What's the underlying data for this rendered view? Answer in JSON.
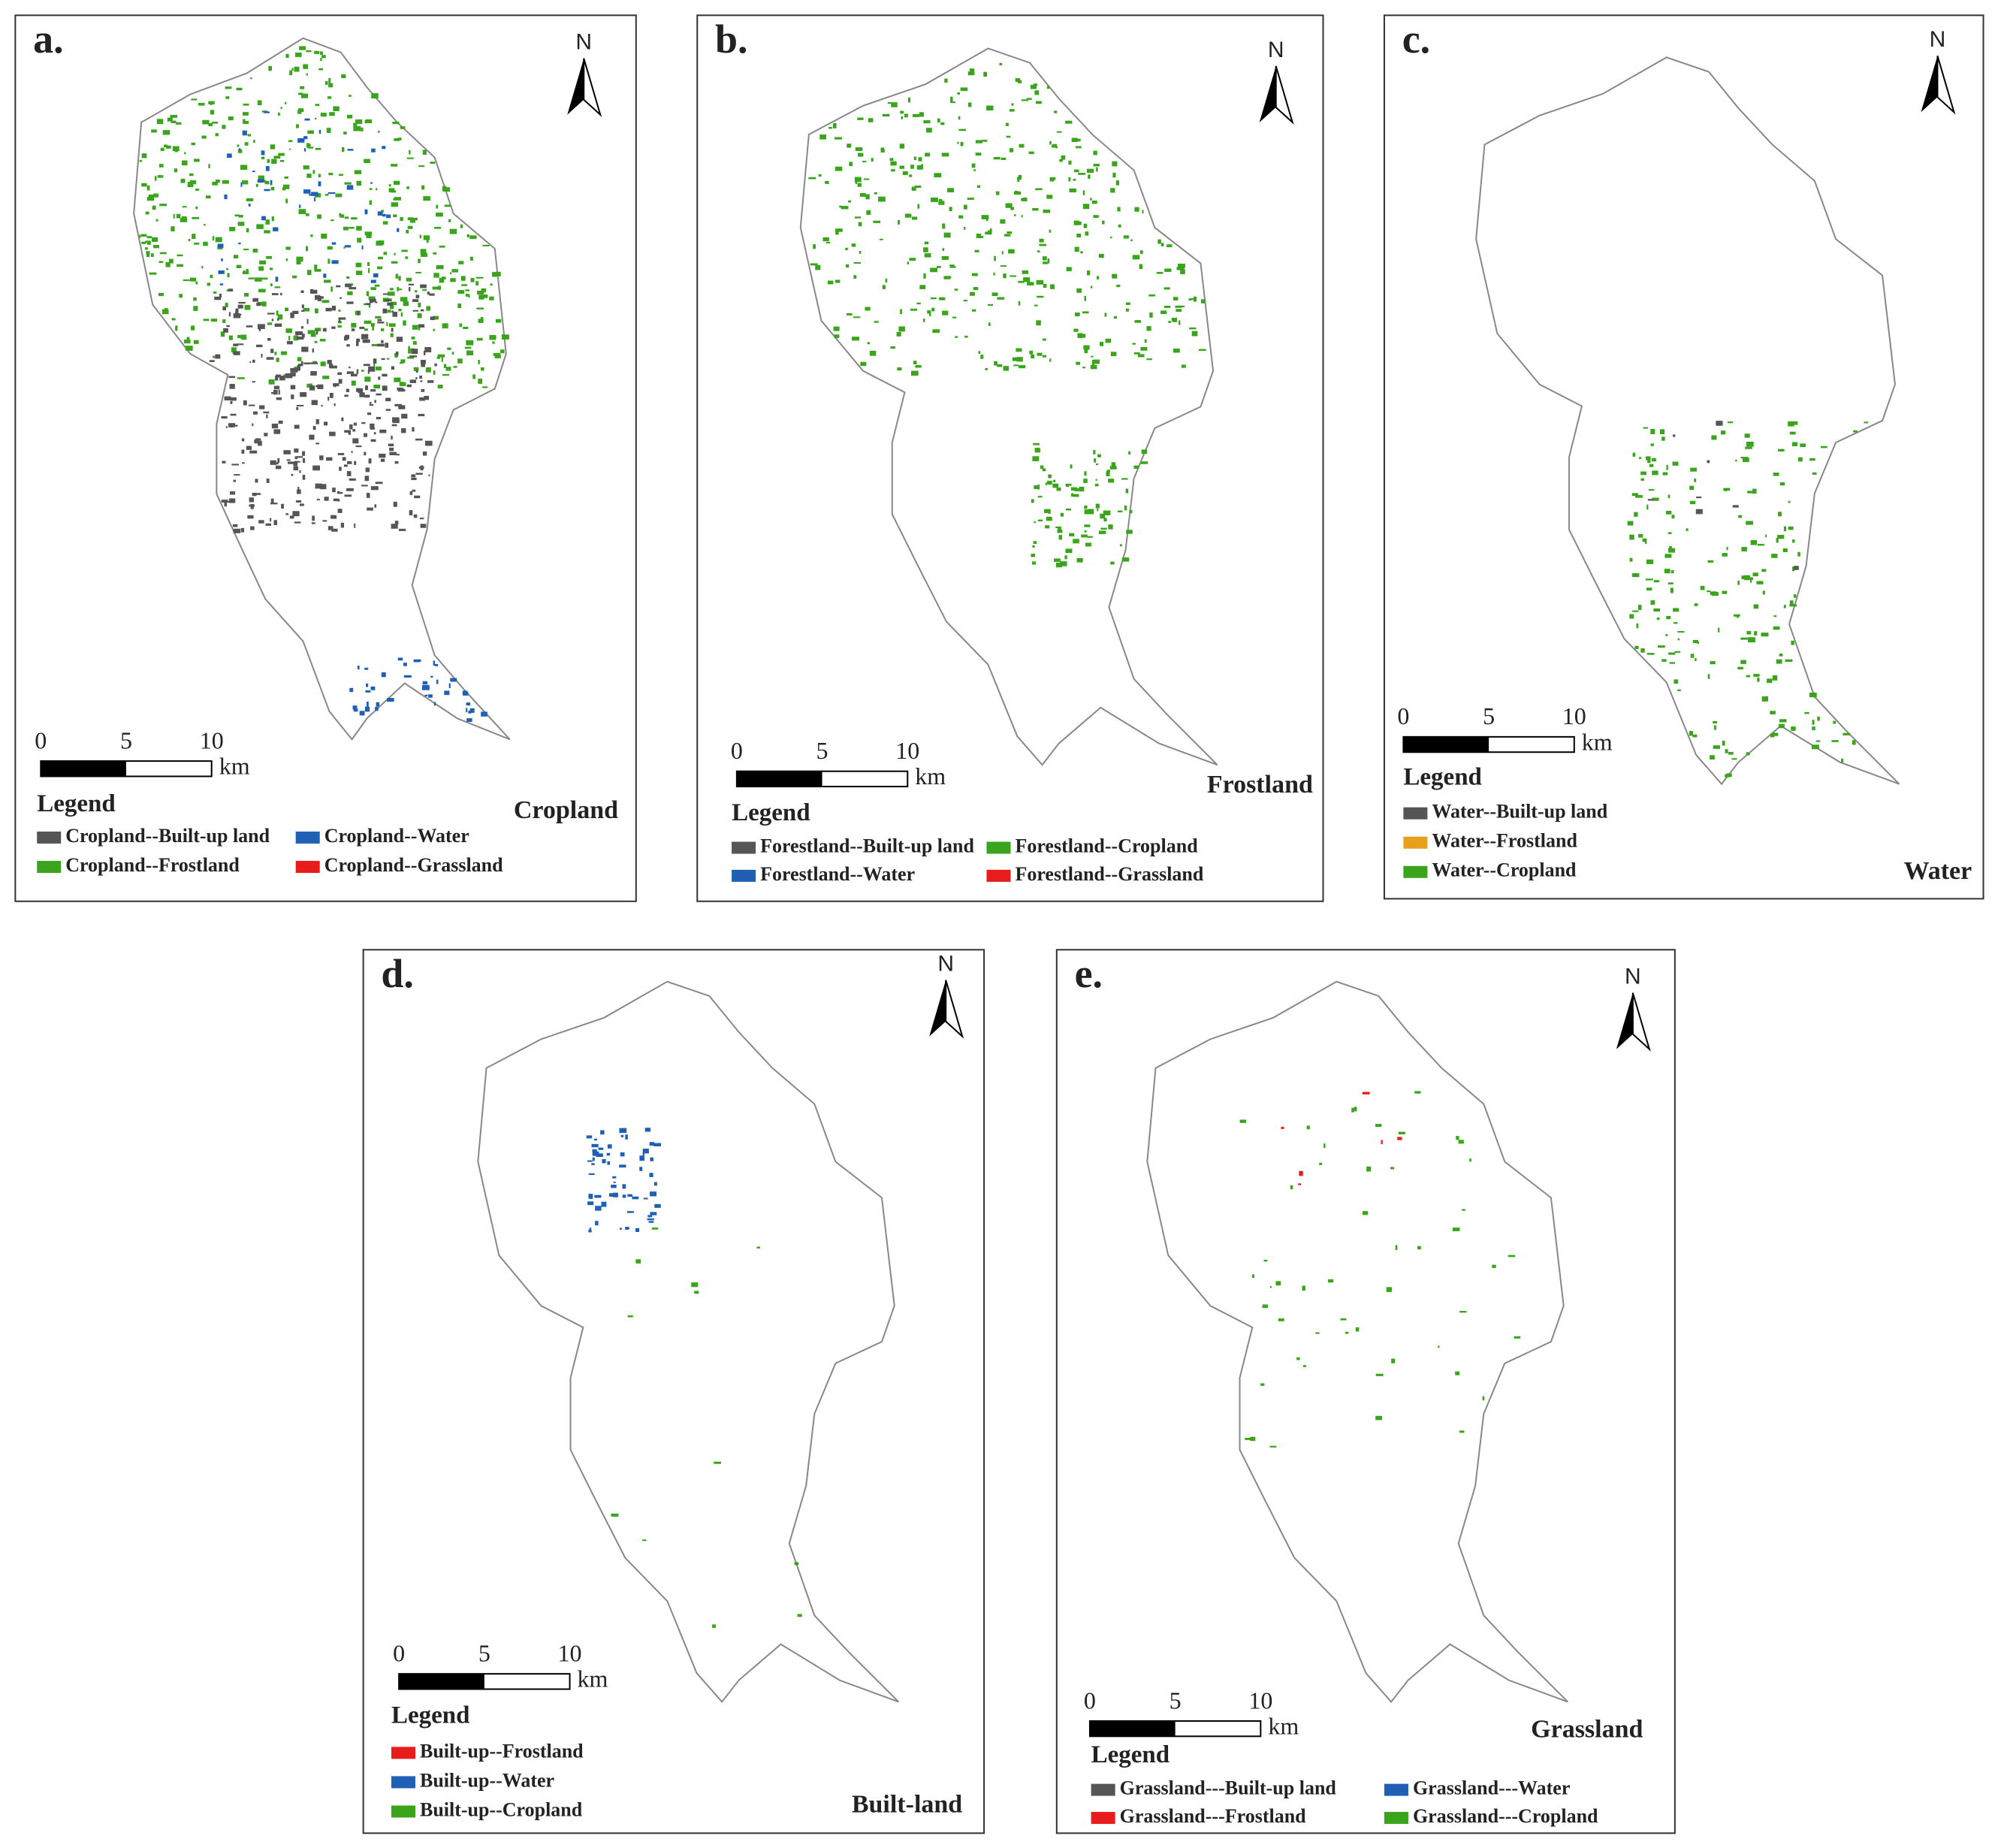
{
  "panels": [
    {
      "label": "a.",
      "title": "Cropland",
      "north": "N",
      "scale": {
        "ticks": [
          0,
          5,
          10
        ],
        "unit": "km"
      },
      "legend": {
        "title": "Legend",
        "items": [
          {
            "label": "Cropland--Built-up land",
            "color": "#555555"
          },
          {
            "label": "Cropland--Water",
            "color": "#1f5fb4"
          },
          {
            "label": "Cropland--Frostland",
            "color": "#3aa51c"
          },
          {
            "label": "Cropland--Grassland",
            "color": "#e81c1c"
          }
        ]
      }
    },
    {
      "label": "b.",
      "title": "Frostland",
      "north": "N",
      "scale": {
        "ticks": [
          0,
          5,
          10
        ],
        "unit": "km"
      },
      "legend": {
        "title": "Legend",
        "items": [
          {
            "label": "Forestland--Built-up land",
            "color": "#555555"
          },
          {
            "label": "Forestland--Cropland",
            "color": "#3aa51c"
          },
          {
            "label": "Forestland--Water",
            "color": "#1f5fb4"
          },
          {
            "label": "Forestland--Grassland",
            "color": "#e81c1c"
          }
        ]
      }
    },
    {
      "label": "c.",
      "title": "Water",
      "north": "N",
      "scale": {
        "ticks": [
          0,
          5,
          10
        ],
        "unit": "km"
      },
      "legend": {
        "title": "Legend",
        "items": [
          {
            "label": "Water--Built-up land",
            "color": "#555555"
          },
          {
            "label": "Water--Frostland",
            "color": "#e8a01c"
          },
          {
            "label": "Water--Cropland",
            "color": "#3aa51c"
          }
        ]
      }
    },
    {
      "label": "d.",
      "title": "Built-land",
      "north": "N",
      "scale": {
        "ticks": [
          0,
          5,
          10
        ],
        "unit": "km"
      },
      "legend": {
        "title": "Legend",
        "items": [
          {
            "label": "Built-up--Frostland",
            "color": "#e81c1c"
          },
          {
            "label": "Built-up--Water",
            "color": "#1f5fb4"
          },
          {
            "label": "Built-up--Cropland",
            "color": "#3aa51c"
          }
        ]
      }
    },
    {
      "label": "e.",
      "title": "Grassland",
      "north": "N",
      "scale": {
        "ticks": [
          0,
          5,
          10
        ],
        "unit": "km"
      },
      "legend": {
        "title": "Legend",
        "items": [
          {
            "label": "Grassland---Built-up land",
            "color": "#555555"
          },
          {
            "label": "Grassland---Water",
            "color": "#1f5fb4"
          },
          {
            "label": "Grassland---Frostland",
            "color": "#e81c1c"
          },
          {
            "label": "Grassland---Cropland",
            "color": "#3aa51c"
          }
        ]
      }
    }
  ]
}
